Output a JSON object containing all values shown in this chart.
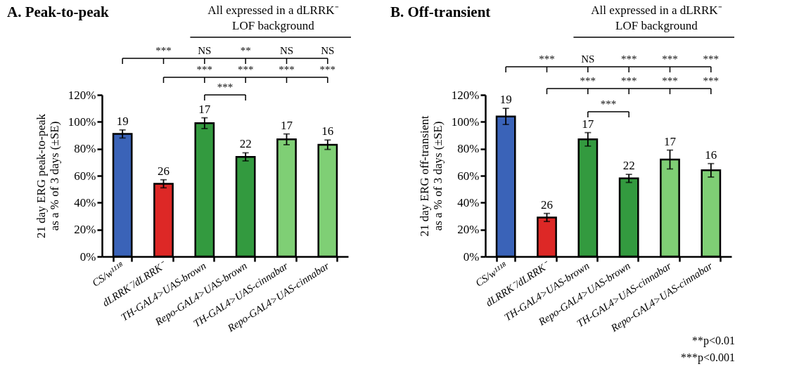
{
  "chart_data": [
    {
      "type": "bar",
      "title": "A. Peak-to-peak",
      "ylabel": "21 day ERG peak-to-peak as a % of 3 days (±SE)",
      "categories": [
        "CS/w¹¹¹⁸",
        "dLRRK⁻/dLRRK⁻",
        "TH-GAL4>UAS-brown",
        "Repo-GAL4>UAS-brown",
        "TH-GAL4>UAS-cinnabar",
        "Repo-GAL4>UAS-cinnabar"
      ],
      "values": [
        91,
        54,
        99,
        74,
        87,
        83
      ],
      "errors": [
        3,
        3,
        4,
        3,
        4,
        3.5
      ],
      "colors": [
        "#3a63b8",
        "#dd2826",
        "#339a3f",
        "#339a3f",
        "#7fcf75",
        "#7fcf75"
      ],
      "ylim": [
        0,
        120
      ],
      "yticks": [
        {
          "value": 0,
          "label": "0%"
        },
        {
          "value": 20,
          "label": "20%"
        },
        {
          "value": 40,
          "label": "40%"
        },
        {
          "value": 60,
          "label": "60%"
        },
        {
          "value": 80,
          "label": "80%"
        },
        {
          "value": 100,
          "label": "100%"
        },
        {
          "value": 120,
          "label": "120%"
        }
      ],
      "annotations": [
        "All expressed in a dLRRK⁻ LOF background",
        "***",
        "NS",
        "**",
        "NS",
        "NS",
        "***",
        "***",
        "***",
        "***",
        "***",
        "19",
        "26",
        "17",
        "22",
        "17",
        "16"
      ]
    },
    {
      "type": "bar",
      "title": "B. Off-transient",
      "ylabel": "21 day ERG off-transient as a % of 3 days (±SE)",
      "categories": [
        "CS/w¹¹¹⁸",
        "dLRRK⁻/dLRRK⁻",
        "TH-GAL4>UAS-brown",
        "Repo-GAL4>UAS-brown",
        "TH-GAL4>UAS-cinnabar",
        "Repo-GAL4>UAS-cinnabar"
      ],
      "values": [
        104,
        29,
        87,
        58,
        72,
        64
      ],
      "errors": [
        6,
        3,
        5,
        3,
        7,
        5
      ],
      "colors": [
        "#3a63b8",
        "#dd2826",
        "#339a3f",
        "#339a3f",
        "#7fcf75",
        "#7fcf75"
      ],
      "ylim": [
        0,
        120
      ],
      "yticks": [
        {
          "value": 0,
          "label": "0%"
        },
        {
          "value": 20,
          "label": "20%"
        },
        {
          "value": 40,
          "label": "40%"
        },
        {
          "value": 60,
          "label": "60%"
        },
        {
          "value": 80,
          "label": "80%"
        },
        {
          "value": 100,
          "label": "100%"
        },
        {
          "value": 120,
          "label": "120%"
        }
      ],
      "annotations": [
        "All expressed in a dLRRK⁻ LOF background",
        "***",
        "NS",
        "***",
        "***",
        "***",
        "***",
        "***",
        "***",
        "***",
        "***",
        "19",
        "26",
        "17",
        "22",
        "17",
        "16",
        "**p<0.01",
        "***p<0.001"
      ]
    }
  ]
}
